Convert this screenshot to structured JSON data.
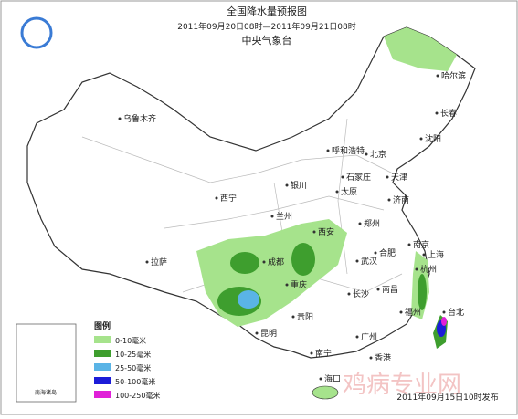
{
  "header": {
    "title": "全国降水量预报图",
    "period": "2011年09月20日08时—2011年09月21日08时",
    "issuer": "中央气象台"
  },
  "cities": [
    "乌鲁木齐",
    "哈尔滨",
    "长春",
    "沈阳",
    "呼和浩特",
    "北京",
    "天津",
    "石家庄",
    "银川",
    "太原",
    "济南",
    "西宁",
    "兰州",
    "郑州",
    "西安",
    "合肥",
    "南京",
    "上海",
    "拉萨",
    "成都",
    "武汉",
    "杭州",
    "重庆",
    "长沙",
    "南昌",
    "福州",
    "贵阳",
    "昆明",
    "台北",
    "南宁",
    "广州",
    "香港",
    "海口"
  ],
  "legend": {
    "title": "图例",
    "items": [
      {
        "label": "0-10毫米",
        "color": "#a6e38c"
      },
      {
        "label": "10-25毫米",
        "color": "#3e9e2e"
      },
      {
        "label": "25-50毫米",
        "color": "#5ab4e6"
      },
      {
        "label": "50-100毫米",
        "color": "#1c1cd8"
      },
      {
        "label": "100-250毫米",
        "color": "#e020d8"
      }
    ]
  },
  "inset": "南海诸岛",
  "footer": "2011年09月15日10时发布",
  "watermark": "鸡病专业网"
}
